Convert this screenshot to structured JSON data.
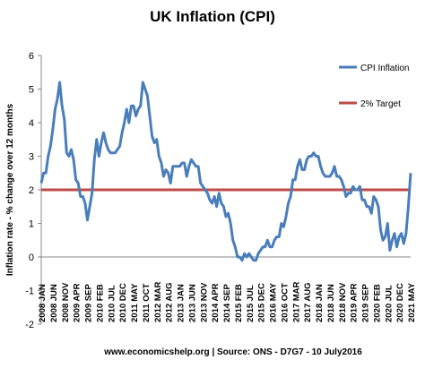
{
  "chart_data": {
    "type": "line",
    "title": "UK Inflation (CPI)",
    "y_label": "Inflation rate  - % change over 12 months",
    "footer": "www.economicshelp.org | Source: ONS - D7G7 - 10 July2016",
    "categories": [
      "2008 JAN",
      null,
      null,
      null,
      null,
      "2008 JUN",
      null,
      null,
      null,
      null,
      "2008 NOV",
      null,
      null,
      null,
      null,
      "2009 APR",
      null,
      null,
      null,
      null,
      "2009 SEP",
      null,
      null,
      null,
      null,
      "2010 FEB",
      null,
      null,
      null,
      null,
      "2010 JUL",
      null,
      null,
      null,
      null,
      "2010 DEC",
      null,
      null,
      null,
      null,
      "2011 MAY",
      null,
      null,
      null,
      null,
      "2011 OCT",
      null,
      null,
      null,
      null,
      "2012 MAR",
      null,
      null,
      null,
      null,
      "2012 AUG",
      null,
      null,
      null,
      null,
      "2013 JAN",
      null,
      null,
      null,
      null,
      "2013 JUN",
      null,
      null,
      null,
      null,
      "2013 NOV",
      null,
      null,
      null,
      null,
      "2014 APR",
      null,
      null,
      null,
      null,
      "2014 SEP",
      null,
      null,
      null,
      null,
      "2015 FEB",
      null,
      null,
      null,
      null,
      "2015 JUL",
      null,
      null,
      null,
      null,
      "2015 DEC",
      null,
      null,
      null,
      null,
      "2016 MAY",
      null,
      null,
      null,
      null,
      "2016 OCT",
      null,
      null,
      null,
      null,
      "2017 MAR",
      null,
      null,
      null,
      null,
      "2017 AUG",
      null,
      null,
      null,
      null,
      "2018 JAN",
      null,
      null,
      null,
      null,
      "2018 JUN",
      null,
      null,
      null,
      null,
      "2018 NOV",
      null,
      null,
      null,
      null,
      "2019 APR",
      null,
      null,
      null,
      null,
      "2019 SEP",
      null,
      null,
      null,
      null,
      "2020 FEB",
      null,
      null,
      null,
      null,
      "2020 JUL",
      null,
      null,
      null,
      null,
      "2020 DEC",
      null,
      null,
      null,
      null,
      "2021 MAY"
    ],
    "series": [
      {
        "name": "CPI Inflation",
        "color": "#4a7ebb",
        "values": [
          2.2,
          2.5,
          2.5,
          3.0,
          3.3,
          3.8,
          4.4,
          4.7,
          5.2,
          4.5,
          4.1,
          3.1,
          3.0,
          3.2,
          2.9,
          2.3,
          2.2,
          1.8,
          1.8,
          1.6,
          1.1,
          1.5,
          1.9,
          2.9,
          3.5,
          3.0,
          3.4,
          3.7,
          3.4,
          3.2,
          3.1,
          3.1,
          3.1,
          3.2,
          3.3,
          3.7,
          4.0,
          4.4,
          4.0,
          4.5,
          4.5,
          4.2,
          4.4,
          4.5,
          5.2,
          5.0,
          4.8,
          4.2,
          3.6,
          3.4,
          3.5,
          3.0,
          2.8,
          2.4,
          2.6,
          2.5,
          2.2,
          2.7,
          2.7,
          2.7,
          2.7,
          2.8,
          2.8,
          2.4,
          2.7,
          2.9,
          2.8,
          2.7,
          2.7,
          2.2,
          2.1,
          2.0,
          1.9,
          1.7,
          1.6,
          1.8,
          1.5,
          1.9,
          1.6,
          1.5,
          1.2,
          1.3,
          1.0,
          0.5,
          0.3,
          0.0,
          0.0,
          -0.1,
          0.1,
          0.0,
          0.1,
          0.0,
          -0.1,
          -0.1,
          0.1,
          0.2,
          0.3,
          0.3,
          0.5,
          0.3,
          0.3,
          0.5,
          0.6,
          0.6,
          1.0,
          0.9,
          1.2,
          1.6,
          1.8,
          2.3,
          2.3,
          2.7,
          2.9,
          2.6,
          2.6,
          2.9,
          3.0,
          3.0,
          3.1,
          3.0,
          3.0,
          2.7,
          2.5,
          2.4,
          2.4,
          2.4,
          2.5,
          2.7,
          2.4,
          2.4,
          2.3,
          2.1,
          1.8,
          1.9,
          1.9,
          2.1,
          2.0,
          2.0,
          2.1,
          1.7,
          1.7,
          1.5,
          1.5,
          1.3,
          1.8,
          1.7,
          1.5,
          0.8,
          0.5,
          0.6,
          1.0,
          0.2,
          0.5,
          0.7,
          0.3,
          0.6,
          0.7,
          0.4,
          0.7,
          1.5,
          2.5
        ]
      },
      {
        "name": "2% Target",
        "color": "#be4b48",
        "values": [
          2,
          2,
          2,
          2,
          2,
          2,
          2,
          2,
          2,
          2,
          2,
          2,
          2,
          2,
          2,
          2,
          2,
          2,
          2,
          2,
          2,
          2,
          2,
          2,
          2,
          2,
          2,
          2,
          2,
          2,
          2,
          2,
          2,
          2,
          2,
          2,
          2,
          2,
          2,
          2,
          2,
          2,
          2,
          2,
          2,
          2,
          2,
          2,
          2,
          2,
          2,
          2,
          2,
          2,
          2,
          2,
          2,
          2,
          2,
          2,
          2,
          2,
          2,
          2,
          2,
          2,
          2,
          2,
          2,
          2,
          2,
          2,
          2,
          2,
          2,
          2,
          2,
          2,
          2,
          2,
          2,
          2,
          2,
          2,
          2,
          2,
          2,
          2,
          2,
          2,
          2,
          2,
          2,
          2,
          2,
          2,
          2,
          2,
          2,
          2,
          2,
          2,
          2,
          2,
          2,
          2,
          2,
          2,
          2,
          2,
          2,
          2,
          2,
          2,
          2,
          2,
          2,
          2,
          2,
          2,
          2,
          2,
          2,
          2,
          2,
          2,
          2,
          2,
          2,
          2,
          2,
          2,
          2,
          2,
          2,
          2,
          2,
          2,
          2,
          2,
          2,
          2,
          2,
          2,
          2,
          2,
          2,
          2,
          2,
          2,
          2,
          2,
          2,
          2,
          2,
          2,
          2,
          2,
          2,
          2,
          2
        ]
      }
    ],
    "ylim": [
      -2,
      6
    ],
    "yticks": [
      -2,
      -1,
      0,
      1,
      2,
      3,
      4,
      5,
      6
    ],
    "grid": false,
    "legend": "top-right"
  }
}
